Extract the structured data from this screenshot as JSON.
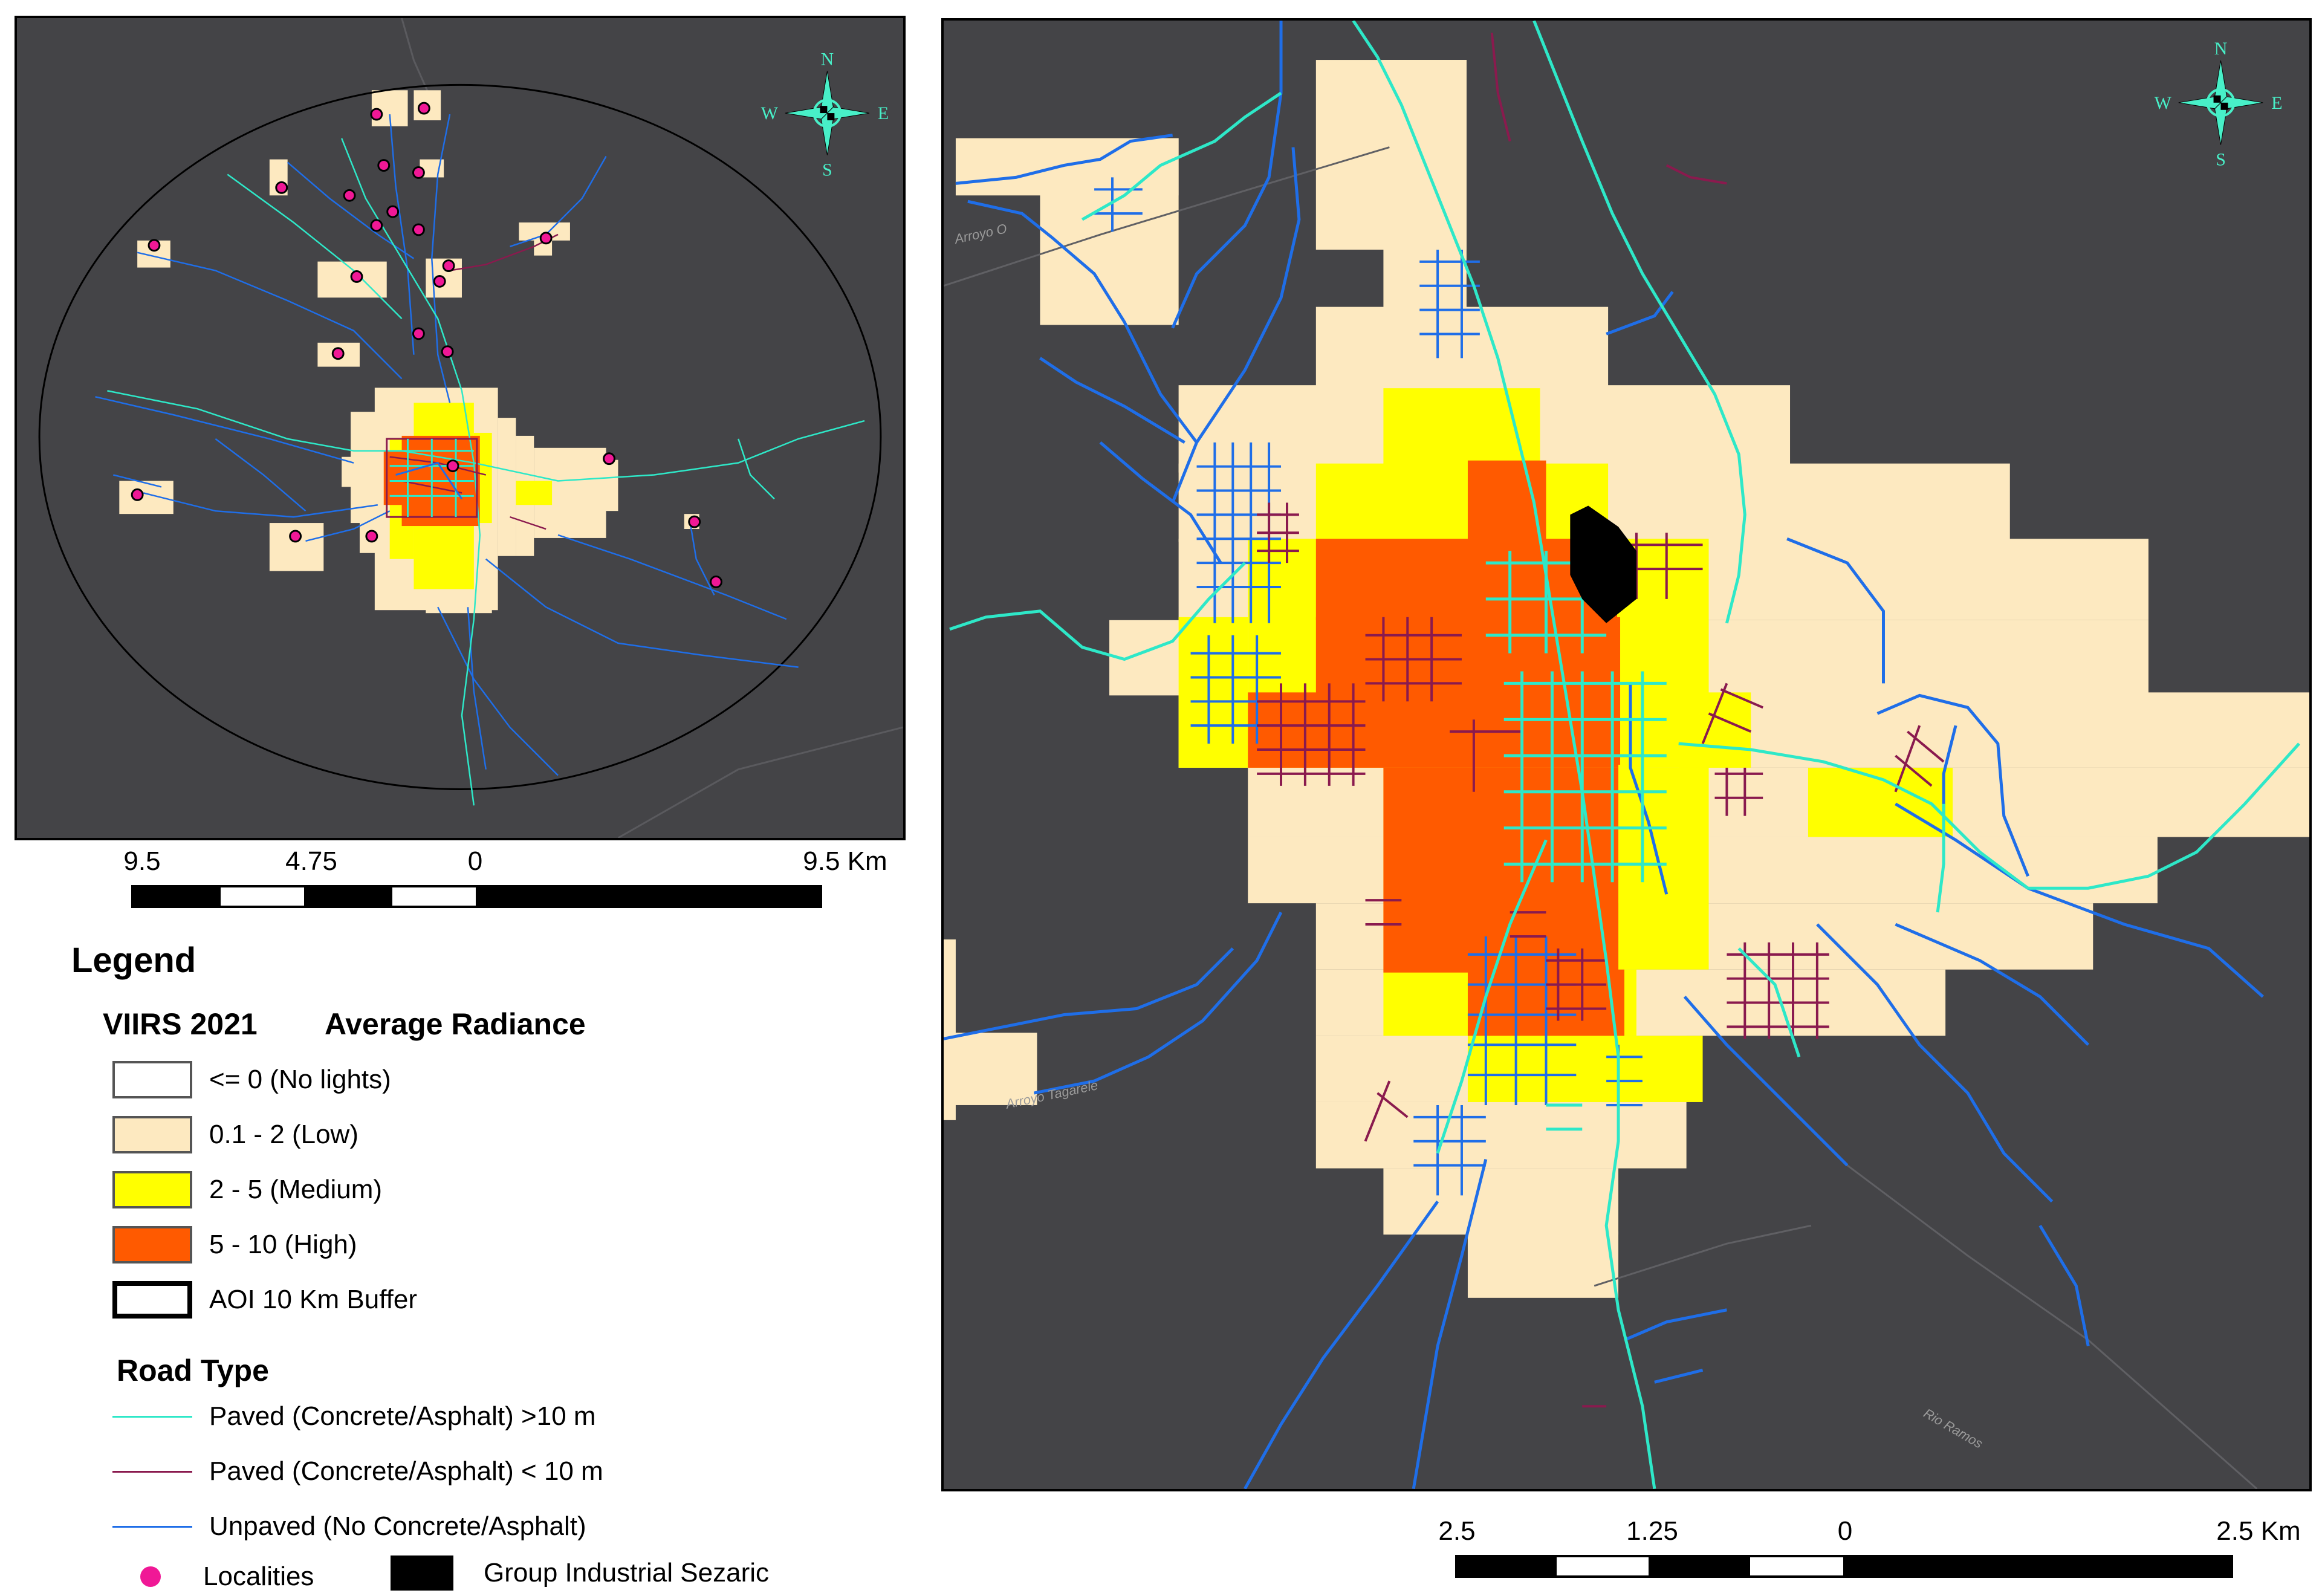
{
  "left_map": {
    "scale": {
      "ticks": [
        "9.5",
        "4.75",
        "0",
        "9.5 Km"
      ]
    },
    "compass": {
      "n": "N",
      "s": "S",
      "e": "E",
      "w": "W"
    }
  },
  "right_map": {
    "scale": {
      "ticks": [
        "2.5",
        "1.25",
        "0",
        "2.5 Km"
      ]
    },
    "compass": {
      "n": "N",
      "s": "S",
      "e": "E",
      "w": "W"
    },
    "labels": {
      "arroyo_o": "Arroyo O",
      "arroyo_tagarele": "Arroyo Tagarele",
      "rio_ramos": "Rio Ramos"
    }
  },
  "legend": {
    "title": "Legend",
    "radiance_title": "VIIRS 2021",
    "radiance_subtitle": "Average Radiance",
    "radiance_classes": [
      {
        "label": "<= 0 (No lights)",
        "color": "#ffffff"
      },
      {
        "label": "0.1 - 2 (Low)",
        "color": "#fde9c0"
      },
      {
        "label": "2 - 5 (Medium)",
        "color": "#ffff00"
      },
      {
        "label": "5 - 10 (High)",
        "color": "#ff5a00"
      }
    ],
    "buffer_label": "AOI 10 Km Buffer",
    "road_title": "Road Type",
    "roads": [
      {
        "label": "Paved (Concrete/Asphalt) >10 m",
        "color": "#2ee8c8"
      },
      {
        "label": "Paved (Concrete/Asphalt) < 10 m",
        "color": "#8a1a4e"
      },
      {
        "label": "Unpaved (No Concrete/Asphalt)",
        "color": "#1f6ee8"
      }
    ],
    "localities_label": "Localities",
    "industrial_label": "Group Industrial Sezaric"
  },
  "colors": {
    "background": "#444447",
    "low": "#fde9c0",
    "medium": "#ffff00",
    "high": "#ff5a00",
    "paved_wide": "#2ee8c8",
    "paved_narrow": "#8a1a4e",
    "unpaved": "#1f6ee8",
    "localities": "#f01896"
  }
}
